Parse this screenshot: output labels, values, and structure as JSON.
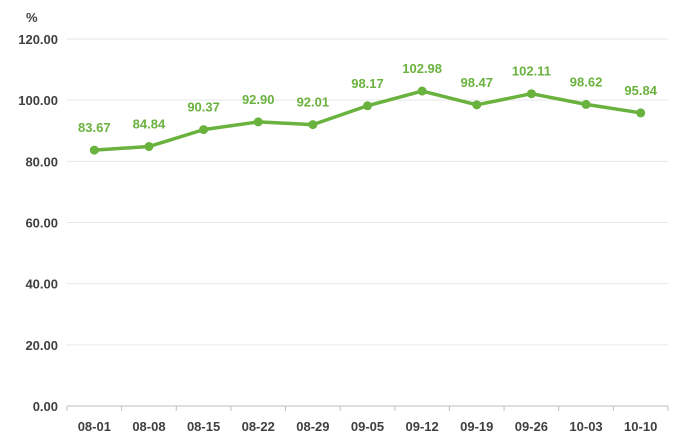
{
  "chart_data": {
    "type": "line",
    "ylabel": "%",
    "categories": [
      "08-01",
      "08-08",
      "08-15",
      "08-22",
      "08-29",
      "09-05",
      "09-12",
      "09-19",
      "09-26",
      "10-03",
      "10-10"
    ],
    "values": [
      83.67,
      84.84,
      90.37,
      92.9,
      92.01,
      98.17,
      102.98,
      98.47,
      102.11,
      98.62,
      95.84
    ],
    "data_labels": [
      "83.67",
      "84.84",
      "90.37",
      "92.90",
      "92.01",
      "98.17",
      "102.98",
      "98.47",
      "102.11",
      "98.62",
      "95.84"
    ],
    "yticks": [
      "0.00",
      "20.00",
      "40.00",
      "60.00",
      "80.00",
      "100.00",
      "120.00"
    ],
    "ylim": [
      0,
      120
    ],
    "grid": true,
    "legend": "none",
    "colors": {
      "line": "#6ab23e",
      "label": "#6ab23e",
      "grid": "#e6e6e6",
      "axis": "#bfbfbf",
      "text": "#404040"
    }
  }
}
